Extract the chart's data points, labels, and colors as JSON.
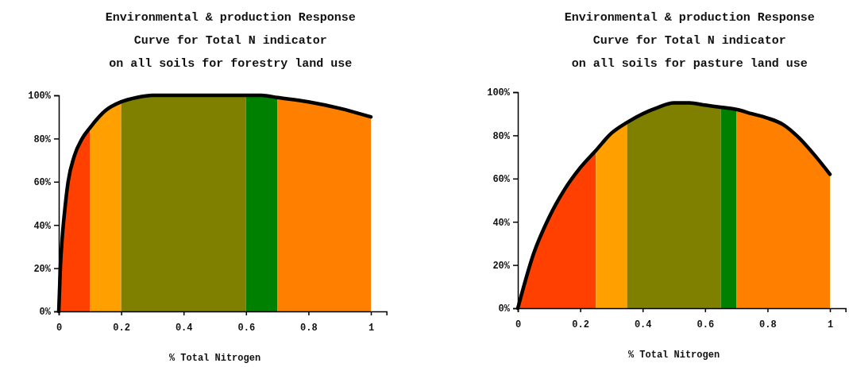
{
  "chart_data": [
    {
      "type": "area",
      "title": "Environmental & production Response\nCurve for Total N indicator\non all soils for forestry land use",
      "xlabel": "% Total Nitrogen",
      "xlim": [
        0,
        1.05
      ],
      "xticks": [
        {
          "value": 0,
          "label": "0"
        },
        0.2,
        0.4,
        0.6,
        0.8,
        1
      ],
      "ylim": [
        0,
        100
      ],
      "yticks": [
        {
          "value": 0,
          "label": "0%"
        },
        {
          "value": 20,
          "label": "20%"
        },
        {
          "value": 40,
          "label": "40%"
        },
        {
          "value": 60,
          "label": "60%"
        },
        {
          "value": 80,
          "label": "80%"
        },
        {
          "value": 100,
          "label": "100%"
        }
      ],
      "grid": false,
      "series": [
        {
          "type": "area",
          "color": "#ff4000",
          "x": [
            0,
            0.005,
            0.01,
            0.02,
            0.03,
            0.05,
            0.075,
            0.1
          ],
          "values": [
            0,
            20,
            32,
            48,
            60,
            72,
            80,
            85
          ]
        },
        {
          "type": "area",
          "color": "#ffa000",
          "x": [
            0.1,
            0.15,
            0.2
          ],
          "values": [
            85,
            93,
            97
          ]
        },
        {
          "type": "area",
          "color": "#808000",
          "x": [
            0.2,
            0.25,
            0.3,
            0.6
          ],
          "values": [
            97,
            99,
            100,
            100
          ]
        },
        {
          "type": "area",
          "color": "#008000",
          "x": [
            0.6,
            0.65,
            0.7
          ],
          "values": [
            100,
            100,
            99
          ]
        },
        {
          "type": "area",
          "color": "#ff8000",
          "x": [
            0.7,
            0.8,
            0.9,
            1
          ],
          "values": [
            99,
            97,
            94,
            90
          ]
        },
        {
          "type": "line",
          "color": "#000000",
          "x": [
            0,
            0.005,
            0.01,
            0.02,
            0.03,
            0.05,
            0.075,
            0.1,
            0.15,
            0.2,
            0.25,
            0.3,
            0.6,
            0.65,
            0.7,
            0.8,
            0.9,
            1
          ],
          "values": [
            0,
            20,
            32,
            48,
            60,
            72,
            80,
            85,
            93,
            97,
            99,
            100,
            100,
            100,
            99,
            97,
            94,
            90
          ]
        }
      ]
    },
    {
      "type": "area",
      "title": "Environmental & production Response\nCurve for Total N indicator\non all soils for pasture land use",
      "xlabel": "% Total Nitrogen",
      "xlim": [
        0,
        1.05
      ],
      "xticks": [
        {
          "value": 0,
          "label": "0"
        },
        0.2,
        0.4,
        0.6,
        0.8,
        1
      ],
      "ylim": [
        0,
        100
      ],
      "yticks": [
        {
          "value": 0,
          "label": "0%"
        },
        {
          "value": 20,
          "label": "20%"
        },
        {
          "value": 40,
          "label": "40%"
        },
        {
          "value": 60,
          "label": "60%"
        },
        {
          "value": 80,
          "label": "80%"
        },
        {
          "value": 100,
          "label": "100%"
        }
      ],
      "grid": false,
      "series": [
        {
          "type": "area",
          "color": "#ff4000",
          "x": [
            0,
            0.05,
            0.1,
            0.15,
            0.2,
            0.25
          ],
          "values": [
            0,
            25,
            42,
            55,
            65,
            73
          ]
        },
        {
          "type": "area",
          "color": "#ffa000",
          "x": [
            0.25,
            0.3,
            0.35
          ],
          "values": [
            73,
            81,
            86
          ]
        },
        {
          "type": "area",
          "color": "#808000",
          "x": [
            0.35,
            0.4,
            0.45,
            0.5,
            0.55,
            0.6,
            0.65
          ],
          "values": [
            86,
            90,
            93,
            95,
            95,
            94,
            93
          ]
        },
        {
          "type": "area",
          "color": "#008000",
          "x": [
            0.65,
            0.7
          ],
          "values": [
            93,
            92
          ]
        },
        {
          "type": "area",
          "color": "#ff8000",
          "x": [
            0.7,
            0.75,
            0.8,
            0.85,
            0.9,
            0.95,
            1
          ],
          "values": [
            92,
            90,
            88,
            85,
            79,
            71,
            62
          ]
        },
        {
          "type": "line",
          "color": "#000000",
          "x": [
            0,
            0.05,
            0.1,
            0.15,
            0.2,
            0.25,
            0.3,
            0.35,
            0.4,
            0.45,
            0.5,
            0.55,
            0.6,
            0.65,
            0.7,
            0.75,
            0.8,
            0.85,
            0.9,
            0.95,
            1
          ],
          "values": [
            0,
            25,
            42,
            55,
            65,
            73,
            81,
            86,
            90,
            93,
            95,
            95,
            94,
            93,
            92,
            90,
            88,
            85,
            79,
            71,
            62
          ]
        }
      ]
    }
  ]
}
